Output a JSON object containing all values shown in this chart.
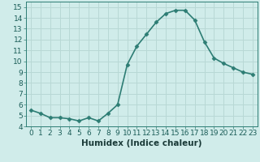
{
  "x": [
    0,
    1,
    2,
    3,
    4,
    5,
    6,
    7,
    8,
    9,
    10,
    11,
    12,
    13,
    14,
    15,
    16,
    17,
    18,
    19,
    20,
    21,
    22,
    23
  ],
  "y": [
    5.5,
    5.2,
    4.8,
    4.8,
    4.7,
    4.5,
    4.8,
    4.5,
    5.2,
    6.0,
    9.7,
    11.4,
    12.5,
    13.6,
    14.4,
    14.7,
    14.7,
    13.8,
    11.8,
    10.3,
    9.8,
    9.4,
    9.0,
    8.8
  ],
  "line_color": "#2d7d74",
  "marker": "D",
  "marker_size": 2.5,
  "xlabel": "Humidex (Indice chaleur)",
  "ylabel": "",
  "xlim": [
    -0.5,
    23.5
  ],
  "ylim": [
    4,
    15.5
  ],
  "yticks": [
    4,
    5,
    6,
    7,
    8,
    9,
    10,
    11,
    12,
    13,
    14,
    15
  ],
  "xticks": [
    0,
    1,
    2,
    3,
    4,
    5,
    6,
    7,
    8,
    9,
    10,
    11,
    12,
    13,
    14,
    15,
    16,
    17,
    18,
    19,
    20,
    21,
    22,
    23
  ],
  "bg_color": "#d0ecea",
  "grid_color": "#b8d8d5",
  "tick_fontsize": 6.5,
  "xlabel_fontsize": 7.5,
  "line_width": 1.2
}
